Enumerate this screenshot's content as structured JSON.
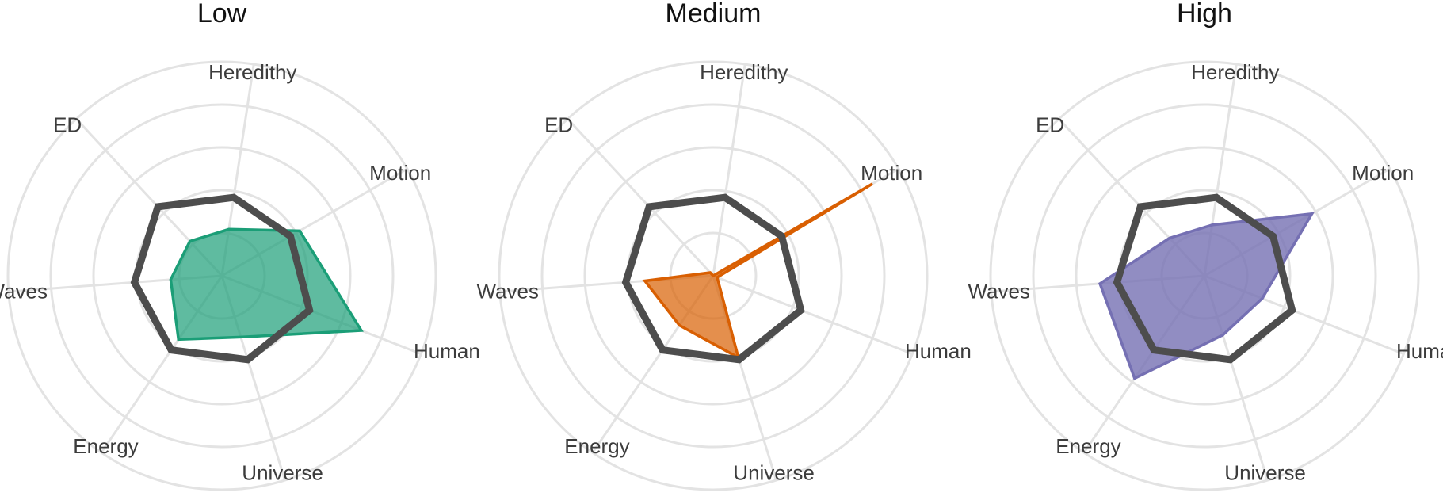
{
  "chart_data": [
    {
      "type": "radar",
      "title": "Low",
      "axes": [
        "Motion",
        "Human",
        "Universe",
        "Energy",
        "Waves",
        "ED",
        "Heredithy"
      ],
      "rlim": [
        0,
        5
      ],
      "grid": true,
      "series": [
        {
          "color": "#1b9e77",
          "fill_opacity": 0.7,
          "values": [
            2.1,
            3.5,
            1.5,
            1.8,
            1.2,
            1.1,
            1.1
          ]
        },
        {
          "color": "#4d4d4d",
          "values": [
            1.85,
            2.2,
            2.05,
            2.1,
            2.05,
            2.2,
            1.85
          ]
        }
      ]
    },
    {
      "type": "radar",
      "title": "Medium",
      "axes": [
        "Motion",
        "Human",
        "Universe",
        "Energy",
        "Waves",
        "ED",
        "Heredithy"
      ],
      "rlim": [
        0,
        5
      ],
      "grid": true,
      "series": [
        {
          "color": "#d95f02",
          "fill_opacity": 0.7,
          "values": [
            4.3,
            0.1,
            2.0,
            1.4,
            1.6,
            0.1,
            0.0
          ]
        },
        {
          "color": "#4d4d4d",
          "values": [
            1.85,
            2.2,
            2.05,
            2.1,
            2.05,
            2.2,
            1.85
          ]
        }
      ]
    },
    {
      "type": "radar",
      "title": "High",
      "axes": [
        "Motion",
        "Human",
        "Universe",
        "Energy",
        "Waves",
        "ED",
        "Heredithy"
      ],
      "rlim": [
        0,
        5
      ],
      "grid": true,
      "series": [
        {
          "color": "#7570b3",
          "fill_opacity": 0.8,
          "values": [
            2.9,
            1.45,
            1.45,
            2.9,
            2.45,
            1.2,
            1.2
          ]
        },
        {
          "color": "#4d4d4d",
          "values": [
            1.85,
            2.2,
            2.05,
            2.1,
            2.05,
            2.2,
            1.85
          ]
        }
      ]
    }
  ]
}
